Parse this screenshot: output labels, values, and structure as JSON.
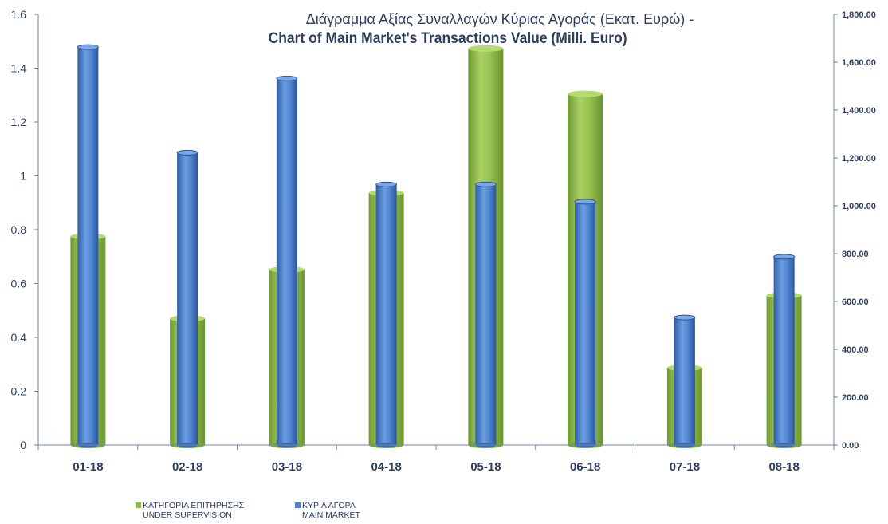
{
  "chart_data": {
    "type": "bar",
    "title": "Διάγραμμα Αξίας Συναλλαγών Κύριας Αγοράς (Εκατ.  Ευρώ) -",
    "subtitle": "Chart of Main Market's Transactions Value (Milli. Euro)",
    "categories": [
      "01-18",
      "02-18",
      "03-18",
      "04-18",
      "05-18",
      "06-18",
      "07-18",
      "08-18"
    ],
    "series": [
      {
        "name_line1": "ΚΑΤΗΓΟΡΙΑ ΕΠΙΤΗΡΗΣΗΣ",
        "name_line2": "UNDER SUPERVISION",
        "axis": "left",
        "color": "#8dba4a",
        "values": [
          0.775,
          0.47,
          0.652,
          0.937,
          1.473,
          1.305,
          0.287,
          0.556
        ]
      },
      {
        "name_line1": "ΚΥΡΙΑ ΑΓΟΡΑ",
        "name_line2": "MAIN MARKET",
        "axis": "right",
        "color": "#4a7ec9",
        "values": [
          1663,
          1222,
          1532,
          1089,
          1089,
          1017,
          533,
          787
        ]
      }
    ],
    "y_left": {
      "min": 0,
      "max": 1.6,
      "ticks": [
        "0",
        "0.2",
        "0.4",
        "0.6",
        "0.8",
        "1",
        "1.2",
        "1.4",
        "1.6"
      ]
    },
    "y_right": {
      "min": 0,
      "max": 1800,
      "ticks": [
        "0.00",
        "200.00",
        "400.00",
        "600.00",
        "800.00",
        "1,000.00",
        "1,200.00",
        "1,400.00",
        "1,600.00",
        "1,800.00"
      ]
    },
    "grid": false,
    "legend_position": "bottom-left"
  }
}
